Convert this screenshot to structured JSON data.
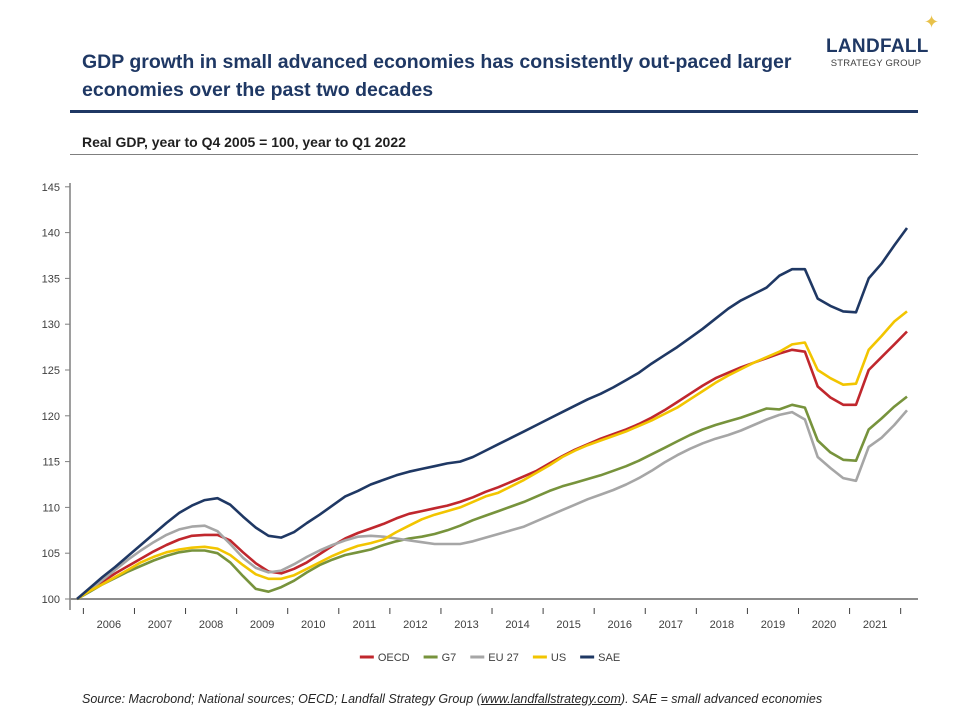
{
  "title": "GDP growth in small advanced economies has consistently out-paced larger economies over the past two decades",
  "logo": {
    "line1": "LANDFALL",
    "line2": "STRATEGY GROUP",
    "star_color": "#e8c14a"
  },
  "subtitle": "Real GDP, year to Q4 2005 = 100, year to Q1 2022",
  "source": {
    "prefix": "Source: Macrobond; National sources; OECD; Landfall Strategy Group (",
    "link": "www.landfallstrategy.com",
    "suffix": "). SAE = small advanced economies"
  },
  "chart_data": {
    "type": "line",
    "title": "",
    "xlabel": "",
    "ylabel": "",
    "ylim": [
      100,
      145
    ],
    "yticks": [
      100,
      105,
      110,
      115,
      120,
      125,
      130,
      135,
      140,
      145
    ],
    "xtick_labels": [
      "2006",
      "2007",
      "2008",
      "2009",
      "2010",
      "2011",
      "2012",
      "2013",
      "2014",
      "2015",
      "2016",
      "2017",
      "2018",
      "2019",
      "2020",
      "2021"
    ],
    "grid": false,
    "legend_position": "bottom",
    "x": [
      "2005Q4",
      "2006Q1",
      "2006Q2",
      "2006Q3",
      "2006Q4",
      "2007Q1",
      "2007Q2",
      "2007Q3",
      "2007Q4",
      "2008Q1",
      "2008Q2",
      "2008Q3",
      "2008Q4",
      "2009Q1",
      "2009Q2",
      "2009Q3",
      "2009Q4",
      "2010Q1",
      "2010Q2",
      "2010Q3",
      "2010Q4",
      "2011Q1",
      "2011Q2",
      "2011Q3",
      "2011Q4",
      "2012Q1",
      "2012Q2",
      "2012Q3",
      "2012Q4",
      "2013Q1",
      "2013Q2",
      "2013Q3",
      "2013Q4",
      "2014Q1",
      "2014Q2",
      "2014Q3",
      "2014Q4",
      "2015Q1",
      "2015Q2",
      "2015Q3",
      "2015Q4",
      "2016Q1",
      "2016Q2",
      "2016Q3",
      "2016Q4",
      "2017Q1",
      "2017Q2",
      "2017Q3",
      "2017Q4",
      "2018Q1",
      "2018Q2",
      "2018Q3",
      "2018Q4",
      "2019Q1",
      "2019Q2",
      "2019Q3",
      "2019Q4",
      "2020Q1",
      "2020Q2",
      "2020Q3",
      "2020Q4",
      "2021Q1",
      "2021Q2",
      "2021Q3",
      "2021Q4",
      "2022Q1"
    ],
    "series": [
      {
        "name": "OECD",
        "color": "#c0272d",
        "values": [
          100,
          101.0,
          101.9,
          102.8,
          103.6,
          104.4,
          105.2,
          105.9,
          106.5,
          106.9,
          107.0,
          107.0,
          106.4,
          105.1,
          103.9,
          103.0,
          102.8,
          103.3,
          104.0,
          104.9,
          105.8,
          106.6,
          107.2,
          107.7,
          108.2,
          108.8,
          109.3,
          109.6,
          109.9,
          110.2,
          110.6,
          111.1,
          111.7,
          112.2,
          112.8,
          113.4,
          114.0,
          114.8,
          115.6,
          116.3,
          116.9,
          117.5,
          118.0,
          118.5,
          119.1,
          119.8,
          120.6,
          121.5,
          122.4,
          123.3,
          124.1,
          124.7,
          125.3,
          125.8,
          126.3,
          126.8,
          127.2,
          127.0,
          123.2,
          122.0,
          121.2,
          121.2,
          125.0,
          126.4,
          127.8,
          129.2
        ]
      },
      {
        "name": "G7",
        "color": "#77933c",
        "values": [
          100,
          100.8,
          101.6,
          102.3,
          103.0,
          103.6,
          104.2,
          104.7,
          105.1,
          105.3,
          105.3,
          105.0,
          104.0,
          102.5,
          101.1,
          100.8,
          101.3,
          102.0,
          102.9,
          103.7,
          104.3,
          104.8,
          105.1,
          105.4,
          105.9,
          106.3,
          106.6,
          106.8,
          107.1,
          107.5,
          108.0,
          108.6,
          109.1,
          109.6,
          110.1,
          110.6,
          111.2,
          111.8,
          112.3,
          112.7,
          113.1,
          113.5,
          114.0,
          114.5,
          115.1,
          115.8,
          116.5,
          117.2,
          117.9,
          118.5,
          119.0,
          119.4,
          119.8,
          120.3,
          120.8,
          120.7,
          121.2,
          120.9,
          117.3,
          116.0,
          115.2,
          115.1,
          118.5,
          119.7,
          121.0,
          122.1
        ]
      },
      {
        "name": "EU 27",
        "color": "#a6a6a6",
        "values": [
          100,
          101.0,
          102.1,
          103.2,
          104.3,
          105.3,
          106.2,
          107.0,
          107.6,
          107.9,
          108.0,
          107.4,
          106.0,
          104.5,
          103.4,
          102.9,
          103.1,
          103.8,
          104.6,
          105.3,
          105.9,
          106.4,
          106.8,
          106.9,
          106.8,
          106.6,
          106.4,
          106.2,
          106.0,
          106.0,
          106.0,
          106.3,
          106.7,
          107.1,
          107.5,
          107.9,
          108.5,
          109.1,
          109.7,
          110.3,
          110.9,
          111.4,
          111.9,
          112.5,
          113.2,
          114.0,
          114.9,
          115.7,
          116.4,
          117.0,
          117.5,
          117.9,
          118.4,
          119.0,
          119.6,
          120.1,
          120.4,
          119.6,
          115.5,
          114.3,
          113.2,
          112.9,
          116.6,
          117.6,
          119.0,
          120.6
        ]
      },
      {
        "name": "US",
        "color": "#f2c500",
        "values": [
          100,
          100.9,
          101.6,
          102.4,
          103.2,
          104.0,
          104.6,
          105.1,
          105.4,
          105.6,
          105.7,
          105.5,
          104.8,
          103.7,
          102.7,
          102.2,
          102.2,
          102.6,
          103.3,
          104.0,
          104.7,
          105.3,
          105.8,
          106.1,
          106.5,
          107.3,
          108.0,
          108.7,
          109.2,
          109.6,
          110.0,
          110.6,
          111.2,
          111.6,
          112.3,
          113.0,
          113.8,
          114.6,
          115.5,
          116.2,
          116.8,
          117.3,
          117.8,
          118.3,
          118.9,
          119.5,
          120.2,
          120.9,
          121.8,
          122.7,
          123.6,
          124.4,
          125.1,
          125.8,
          126.4,
          127.0,
          127.8,
          128.0,
          125.0,
          124.1,
          123.4,
          123.5,
          127.2,
          128.7,
          130.3,
          131.4
        ]
      },
      {
        "name": "SAE",
        "color": "#1f3864",
        "values": [
          100,
          101.2,
          102.4,
          103.5,
          104.7,
          105.9,
          107.1,
          108.3,
          109.4,
          110.2,
          110.8,
          111.0,
          110.3,
          109.0,
          107.8,
          106.9,
          106.7,
          107.3,
          108.3,
          109.2,
          110.2,
          111.2,
          111.8,
          112.5,
          113.0,
          113.5,
          113.9,
          114.2,
          114.5,
          114.8,
          115.0,
          115.5,
          116.2,
          116.9,
          117.6,
          118.3,
          119.0,
          119.7,
          120.4,
          121.1,
          121.8,
          122.4,
          123.1,
          123.9,
          124.7,
          125.7,
          126.6,
          127.5,
          128.5,
          129.5,
          130.6,
          131.7,
          132.6,
          133.3,
          134.0,
          135.3,
          136.0,
          136.0,
          132.8,
          132.0,
          131.4,
          131.3,
          135.0,
          136.6,
          138.6,
          140.5
        ]
      }
    ]
  }
}
